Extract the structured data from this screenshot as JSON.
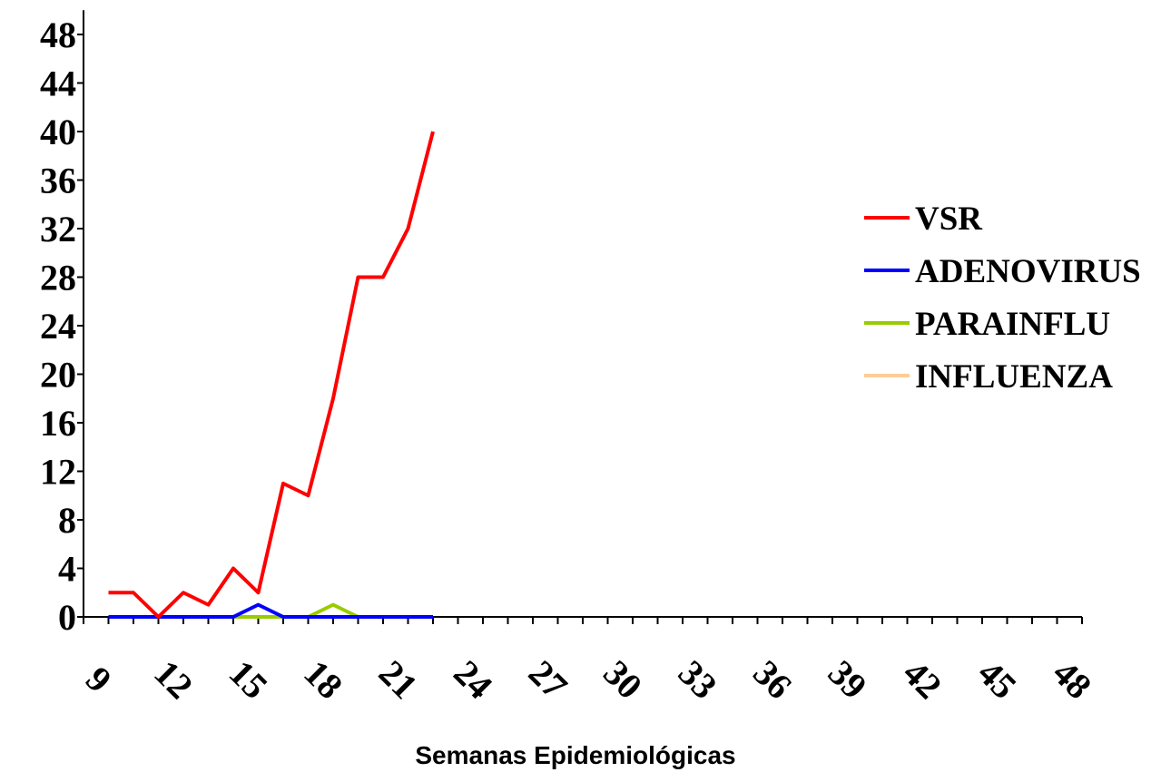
{
  "chart_data": {
    "type": "line",
    "title": "",
    "xlabel": "Semanas Epidemiológicas",
    "ylabel": "",
    "ylim": [
      0,
      50
    ],
    "xlim": [
      9,
      49
    ],
    "y_ticks": [
      0,
      4,
      8,
      12,
      16,
      20,
      24,
      28,
      32,
      36,
      40,
      44,
      48
    ],
    "x_tick_labels": [
      9,
      12,
      15,
      18,
      21,
      24,
      27,
      30,
      33,
      36,
      39,
      42,
      45,
      48
    ],
    "grid": false,
    "legend_position": "right",
    "x": [
      10,
      11,
      12,
      13,
      14,
      15,
      16,
      17,
      18,
      19,
      20,
      21,
      22,
      23
    ],
    "series": [
      {
        "name": "VSR",
        "color": "#ff0000",
        "values": [
          2,
          2,
          0,
          2,
          1,
          4,
          2,
          11,
          10,
          18,
          28,
          28,
          32,
          40
        ]
      },
      {
        "name": "ADENOVIRUS",
        "color": "#0000ff",
        "values": [
          0,
          0,
          0,
          0,
          0,
          0,
          1,
          0,
          0,
          0,
          0,
          0,
          0,
          0
        ]
      },
      {
        "name": "PARAINFLU",
        "color": "#99cc00",
        "values": [
          0,
          0,
          0,
          0,
          0,
          0,
          0,
          0,
          0,
          1,
          0,
          0,
          0,
          0
        ]
      },
      {
        "name": "INFLUENZA",
        "color": "#ffcc99",
        "values": [
          0,
          0,
          0,
          0,
          0,
          0,
          0,
          0,
          0,
          0,
          0,
          0,
          0,
          0
        ]
      }
    ]
  }
}
